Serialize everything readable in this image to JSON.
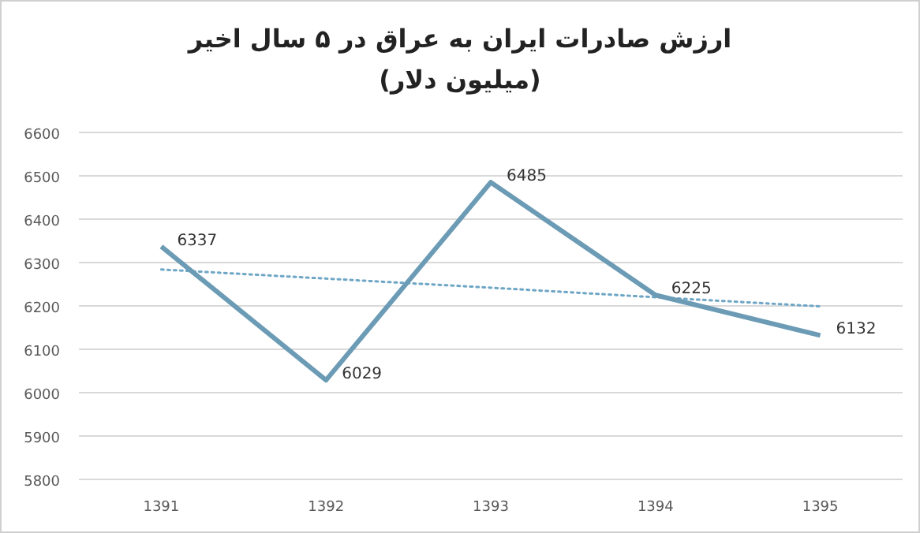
{
  "chart_data": {
    "type": "line",
    "title": "ارزش صادرات ایران به عراق در ۵ سال اخیر",
    "subtitle": "(میلیون دلار)",
    "categories": [
      "1391",
      "1392",
      "1393",
      "1394",
      "1395"
    ],
    "series": [
      {
        "color": "#6c9bb5",
        "values": [
          6337,
          6029,
          6485,
          6225,
          6132
        ],
        "value_labels": [
          "6337",
          "6029",
          "6485",
          "6225",
          "6132"
        ],
        "line_style": "solid"
      },
      {
        "type": "line",
        "color": "#6ea6c6",
        "values": [
          6284,
          6263,
          6242,
          6220,
          6199
        ],
        "line_style": "dotted"
      }
    ],
    "ylim": [
      5800,
      6600
    ],
    "yticks": [
      5800,
      5900,
      6000,
      6100,
      6200,
      6300,
      6400,
      6500,
      6600
    ],
    "grid": "y",
    "marker": "none"
  }
}
